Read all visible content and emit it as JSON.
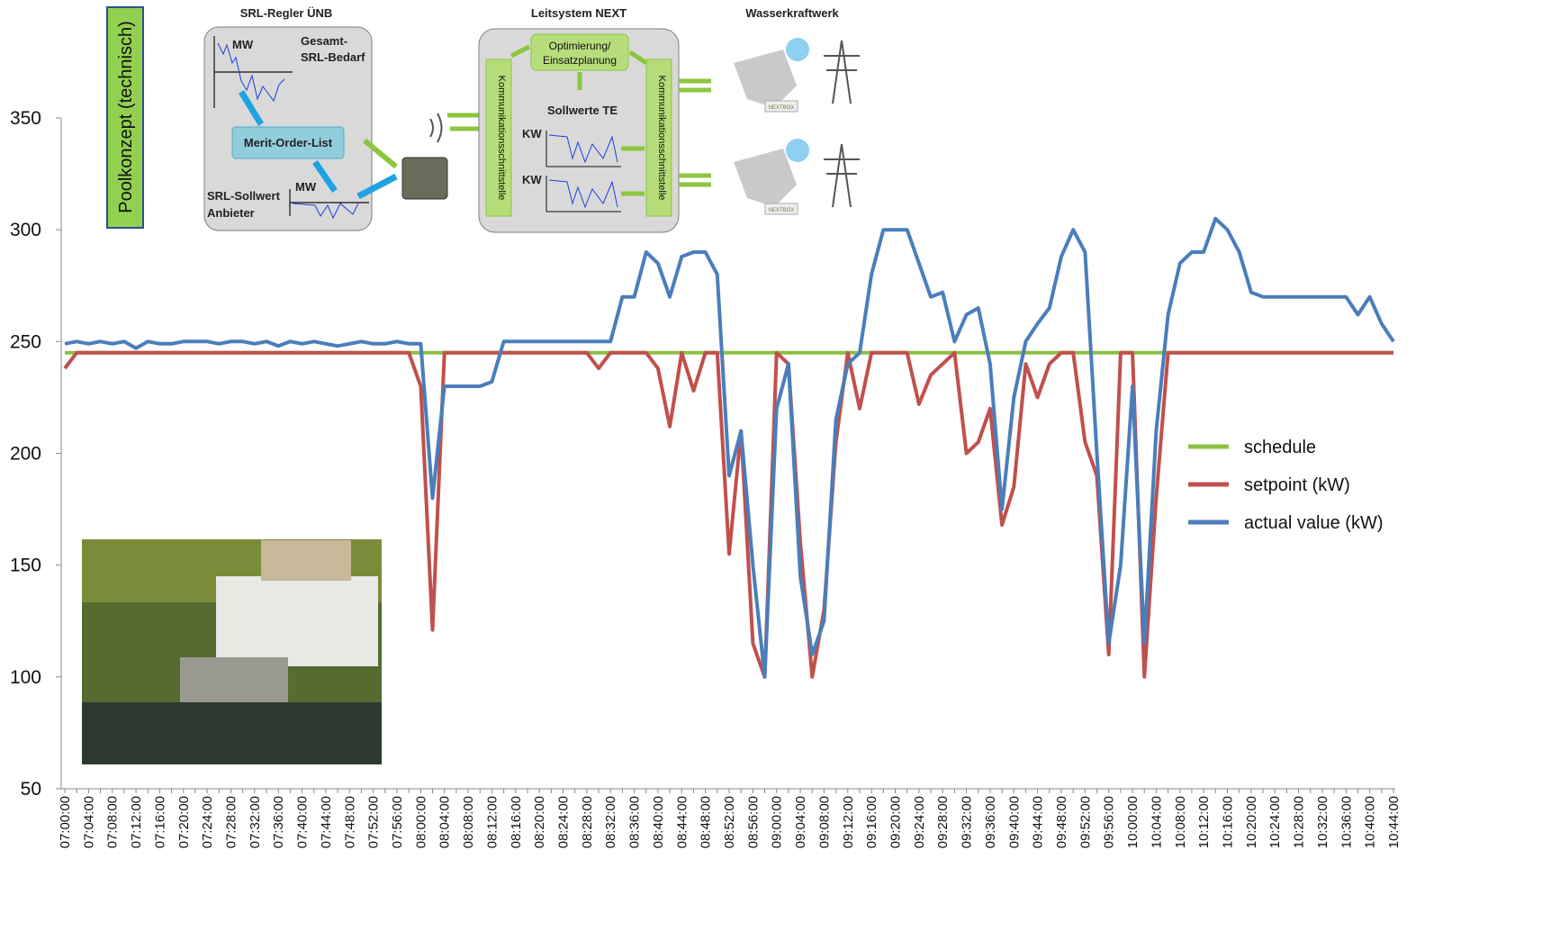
{
  "chart_data": {
    "type": "line",
    "categories": [
      "07:00:00",
      null,
      "07:04:00",
      null,
      "07:08:00",
      null,
      "07:12:00",
      null,
      "07:16:00",
      null,
      "07:20:00",
      null,
      "07:24:00",
      null,
      "07:28:00",
      null,
      "07:32:00",
      null,
      "07:36:00",
      null,
      "07:40:00",
      null,
      "07:44:00",
      null,
      "07:48:00",
      null,
      "07:52:00",
      null,
      "07:56:00",
      null,
      "08:00:00",
      null,
      "08:04:00",
      null,
      "08:08:00",
      null,
      "08:12:00",
      null,
      "08:16:00",
      null,
      "08:20:00",
      null,
      "08:24:00",
      null,
      "08:28:00",
      null,
      "08:32:00",
      null,
      "08:36:00",
      null,
      "08:40:00",
      null,
      "08:44:00",
      null,
      "08:48:00",
      null,
      "08:52:00",
      null,
      "08:56:00",
      null,
      "09:00:00",
      null,
      "09:04:00",
      null,
      "09:08:00",
      null,
      "09:12:00",
      null,
      "09:16:00",
      null,
      "09:20:00",
      null,
      "09:24:00",
      null,
      "09:28:00",
      null,
      "09:32:00",
      null,
      "09:36:00",
      null,
      "09:40:00",
      null,
      "09:44:00",
      null,
      "09:48:00",
      null,
      "09:52:00",
      null,
      "09:56:00",
      null,
      "10:00:00",
      null,
      "10:04:00",
      null,
      "10:08:00",
      null,
      "10:12:00",
      null,
      "10:16:00",
      null,
      "10:20:00",
      null,
      "10:24:00",
      null,
      "10:28:00",
      null,
      "10:32:00",
      null,
      "10:36:00",
      null,
      "10:40:00",
      null,
      "10:44:00"
    ],
    "series": [
      {
        "name": "schedule",
        "color": "#8cbf44",
        "values": [
          245,
          245,
          245,
          245,
          245,
          245,
          245,
          245,
          245,
          245,
          245,
          245,
          245,
          245,
          245,
          245,
          245,
          245,
          245,
          245,
          245,
          245,
          245,
          245,
          245,
          245,
          245,
          245,
          245,
          245,
          245,
          245,
          245,
          245,
          245,
          245,
          245,
          245,
          245,
          245,
          245,
          245,
          245,
          245,
          245,
          245,
          245,
          245,
          245,
          245,
          245,
          245,
          245,
          245,
          245,
          245,
          245,
          245,
          245,
          245,
          245,
          245,
          245,
          245,
          245,
          245,
          245,
          245,
          245,
          245,
          245,
          245,
          245,
          245,
          245,
          245,
          245,
          245,
          245,
          245,
          245,
          245,
          245,
          245,
          245,
          245,
          245,
          245,
          245,
          245,
          245,
          245,
          245,
          245,
          245,
          245,
          245,
          245,
          245,
          245,
          245,
          245,
          245,
          245,
          245,
          245,
          245,
          245,
          245,
          245,
          245,
          245,
          245
        ]
      },
      {
        "name": "setpoint (kW)",
        "color": "#c0504d",
        "values": [
          238,
          245,
          245,
          245,
          245,
          245,
          245,
          245,
          245,
          245,
          245,
          245,
          245,
          245,
          245,
          245,
          245,
          245,
          245,
          245,
          245,
          245,
          245,
          245,
          245,
          245,
          245,
          245,
          245,
          245,
          230,
          121,
          245,
          245,
          245,
          245,
          245,
          245,
          245,
          245,
          245,
          245,
          245,
          245,
          245,
          238,
          245,
          245,
          245,
          245,
          238,
          212,
          245,
          228,
          245,
          245,
          155,
          210,
          115,
          100,
          245,
          240,
          160,
          100,
          130,
          205,
          245,
          220,
          245,
          245,
          245,
          245,
          222,
          235,
          240,
          245,
          200,
          205,
          220,
          168,
          185,
          240,
          225,
          240,
          245,
          245,
          205,
          190,
          110,
          245,
          245,
          100,
          180,
          245,
          245,
          245,
          245,
          245,
          245,
          245,
          245,
          245,
          245,
          245,
          245,
          245,
          245,
          245,
          245,
          245,
          245,
          245,
          245
        ]
      },
      {
        "name": "actual value (kW)",
        "color": "#4a7ebb",
        "values": [
          249,
          250,
          249,
          250,
          249,
          250,
          247,
          250,
          249,
          249,
          250,
          250,
          250,
          249,
          250,
          250,
          249,
          250,
          248,
          250,
          249,
          250,
          249,
          248,
          249,
          250,
          249,
          249,
          250,
          249,
          249,
          180,
          230,
          230,
          230,
          230,
          232,
          250,
          250,
          250,
          250,
          250,
          250,
          250,
          250,
          250,
          250,
          270,
          270,
          290,
          285,
          270,
          288,
          290,
          290,
          280,
          190,
          210,
          150,
          100,
          220,
          240,
          145,
          110,
          125,
          215,
          240,
          245,
          280,
          300,
          300,
          300,
          285,
          270,
          272,
          250,
          262,
          265,
          240,
          175,
          225,
          250,
          258,
          265,
          288,
          300,
          290,
          200,
          115,
          150,
          230,
          115,
          210,
          262,
          285,
          290,
          290,
          305,
          300,
          290,
          272,
          270,
          270,
          270,
          270,
          270,
          270,
          270,
          270,
          262,
          270,
          258,
          250
        ]
      }
    ],
    "ylim": [
      50,
      350
    ],
    "yticks": [
      50,
      100,
      150,
      200,
      250,
      300,
      350
    ],
    "grid": false,
    "legend": "right"
  },
  "diagram": {
    "pool": "Poolkonzept (technisch)",
    "srl_title": "SRL-Regler ÜNB",
    "mw1": "MW",
    "gesamt1": "Gesamt-",
    "gesamt2": "SRL-Bedarf",
    "merit": "Merit-Order-List",
    "mw2": "MW",
    "sollwert1": "SRL-Sollwert",
    "sollwert2": "Anbieter",
    "next_title": "Leitsystem NEXT",
    "opt1": "Optimierung/",
    "opt2": "Einsatzplanung",
    "komm1": "Kommunikationsschnittstelle",
    "komm2": "Kommunikationsschnittstelle",
    "sollte": "Sollwerte TE",
    "kw1": "KW",
    "kw2": "KW",
    "wkw_title": "Wasserkraftwerk",
    "nextbox1": "NEXTBOX",
    "nextbox2": "NEXTBOX"
  }
}
